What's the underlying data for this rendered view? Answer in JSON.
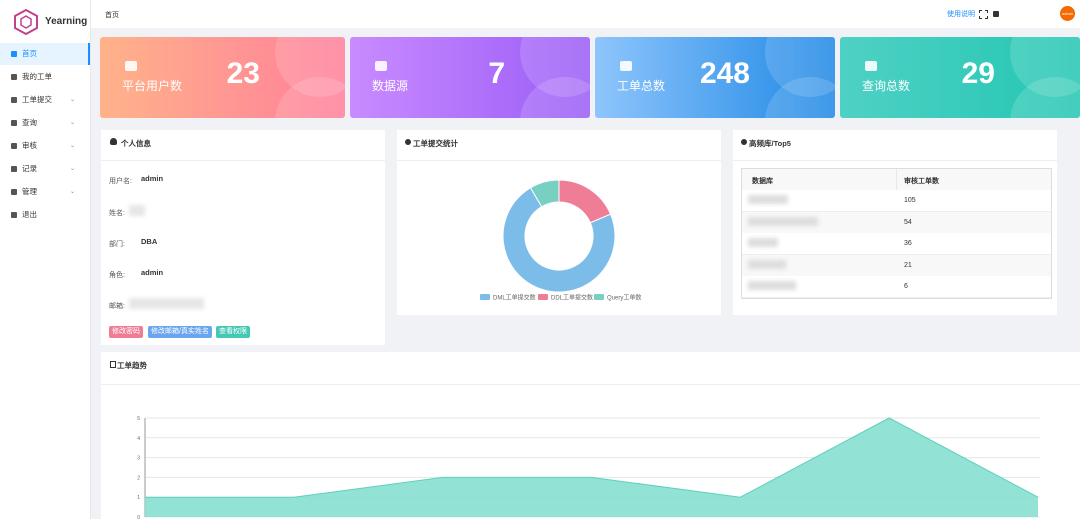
{
  "sidebar": {
    "brand": "Yearning",
    "menu": [
      "首页",
      "我的工单",
      "工单提交",
      "查询",
      "审核",
      "记录",
      "管理",
      "退出"
    ]
  },
  "header": {
    "breadcrumb": "首页",
    "help": "使用说明",
    "avatar": "admin"
  },
  "stat_cards": [
    {
      "label": "平台用户数",
      "value": 23
    },
    {
      "label": "数据源",
      "value": 7
    },
    {
      "label": "工单总数",
      "value": 248
    },
    {
      "label": "查询总数",
      "value": 29
    }
  ],
  "profile": {
    "title": "个人信息",
    "fields": [
      {
        "label": "用户名:",
        "value": "admin"
      },
      {
        "label": "姓名:"
      },
      {
        "label": "部门:",
        "value": "DBA"
      },
      {
        "label": "角色:",
        "value": "admin"
      },
      {
        "label": "邮箱:"
      }
    ],
    "buttons": [
      "修改密码",
      "修改邮箱/真实姓名",
      "查看权限"
    ]
  },
  "top_db": {
    "title": "高频库/Top5",
    "columns": [
      "数据库",
      "审核工单数"
    ],
    "counts": [
      105,
      54,
      36,
      21,
      6
    ]
  },
  "chart_data": [
    {
      "type": "donut",
      "title": "工单提交统计",
      "categories": [
        "DML工单提交数",
        "DDL工单提交数",
        "Query工单数"
      ],
      "values": [
        180,
        46,
        21
      ],
      "colors": [
        "#7bbde8",
        "#ef7d95",
        "#78d0c2"
      ]
    },
    {
      "type": "area",
      "title": "工单趋势",
      "values": [
        1,
        1,
        2,
        2,
        1,
        5,
        1
      ],
      "ylim": [
        0,
        5
      ],
      "yticks": [
        0,
        1,
        2,
        3,
        4,
        5
      ],
      "color": "#86dfd0",
      "line_color": "#5fd0bd",
      "grid": true
    }
  ]
}
